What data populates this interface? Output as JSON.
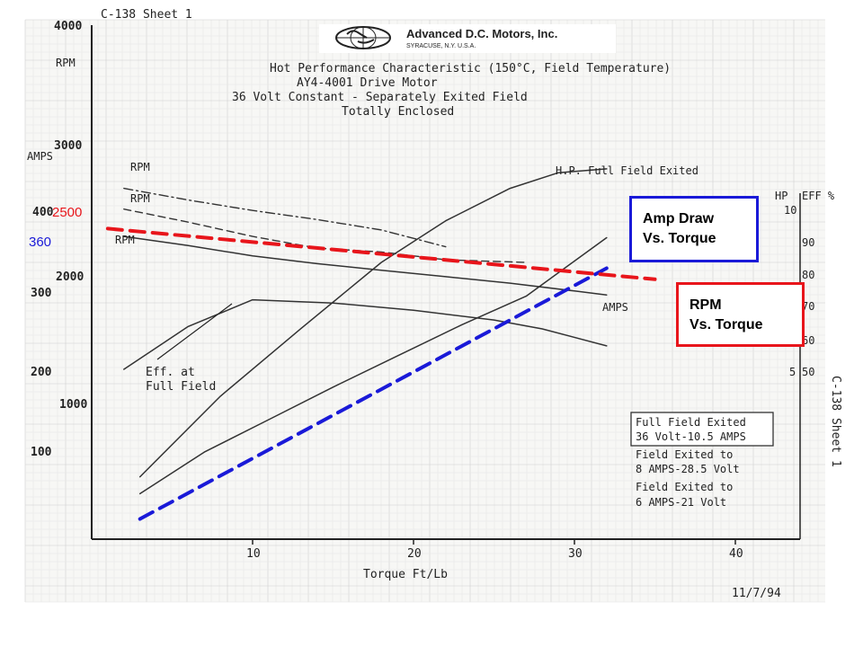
{
  "sheet_label": "C-138 Sheet 1",
  "side_label": "C-138 Sheet 1",
  "date": "11/7/94",
  "logo": {
    "company": "Advanced D.C. Motors, Inc.",
    "location": "SYRACUSE, N.Y. U.S.A."
  },
  "titles": {
    "line1": "Hot Performance Characteristic  (150°C, Field Temperature)",
    "line2": "AY4-4001 Drive Motor",
    "line3": "36 Volt Constant - Separately Exited Field",
    "line4": "Totally Enclosed"
  },
  "axes": {
    "x_label": "Torque Ft/Lb",
    "x_ticks": [
      "10",
      "20",
      "30",
      "40"
    ],
    "rpm_unit": "RPM",
    "amps_unit": "AMPS",
    "rpm_ticks": [
      "4000",
      "3000",
      "2000",
      "1000"
    ],
    "amps_ticks": [
      "400",
      "300",
      "200",
      "100"
    ],
    "hp_unit": "HP",
    "eff_unit": "EFF %",
    "hp_ticks": [
      "10",
      "5"
    ],
    "eff_ticks": [
      "90",
      "80",
      "70",
      "60",
      "50"
    ]
  },
  "labels": {
    "rpm1": "RPM",
    "rpm2": "RPM",
    "rpm3": "RPM",
    "hp_curve": "H.P. Full Field Exited",
    "amps_curve": "AMPS",
    "eff_line1": "Eff. at",
    "eff_line2": "Full Field"
  },
  "legend": {
    "line1": "Full Field Exited",
    "line2": "36 Volt-10.5 AMPS",
    "line3": "Field Exited to",
    "line4": "8 AMPS-28.5 Volt",
    "line5": "Field Exited to",
    "line6": "6 AMPS-21 Volt"
  },
  "overlay": {
    "red_value": "2500",
    "blue_value": "360",
    "amp_box": [
      "Amp Draw",
      "Vs. Torque"
    ],
    "rpm_box": [
      "RPM",
      "Vs. Torque"
    ],
    "red_color": "#e8151b",
    "blue_color": "#1a1ad8"
  },
  "chart_data": {
    "type": "line",
    "xlabel": "Torque Ft/Lb",
    "x_ticks": [
      10,
      20,
      30,
      40
    ],
    "series": [
      {
        "name": "RPM",
        "style": "dash-dot",
        "x": [
          2,
          6,
          10,
          14,
          18,
          22
        ],
        "y": [
          2700,
          2610,
          2530,
          2460,
          2380,
          2250
        ]
      },
      {
        "name": "RPM",
        "style": "dashed",
        "x": [
          2,
          6,
          10,
          14,
          18,
          22,
          27
        ],
        "y": [
          2540,
          2440,
          2330,
          2240,
          2210,
          2150,
          2130
        ]
      },
      {
        "name": "RPM",
        "style": "solid",
        "x": [
          2,
          6,
          10,
          14,
          18,
          22,
          26,
          30,
          32
        ],
        "y": [
          2330,
          2260,
          2180,
          2120,
          2070,
          2020,
          1970,
          1910,
          1880
        ]
      },
      {
        "name": "H.P. Full Field Exited",
        "style": "solid",
        "x": [
          3,
          8,
          13,
          18,
          22,
          26,
          29,
          32
        ],
        "y": [
          480,
          1100,
          1620,
          2130,
          2450,
          2700,
          2820,
          2850
        ]
      },
      {
        "name": "AMPS",
        "style": "solid",
        "x": [
          2,
          6,
          10,
          15,
          20,
          25,
          28,
          32
        ],
        "y": [
          210,
          263,
          296,
          292,
          283,
          271,
          260,
          239
        ]
      },
      {
        "name": "Eff. at Full Field",
        "style": "solid",
        "x": [
          3,
          7,
          11,
          15,
          19,
          23,
          27,
          32
        ],
        "y": [
          350,
          670,
          920,
          1170,
          1410,
          1650,
          1870,
          2320
        ]
      },
      {
        "name": "Amp Draw Vs. Torque",
        "style": "overlay-dashed-blue",
        "x": [
          3,
          32
        ],
        "y": [
          25,
          335
        ]
      },
      {
        "name": "RPM Vs. Torque",
        "style": "overlay-dashed-red",
        "x": [
          1,
          35
        ],
        "y": [
          2390,
          2000
        ]
      }
    ]
  }
}
